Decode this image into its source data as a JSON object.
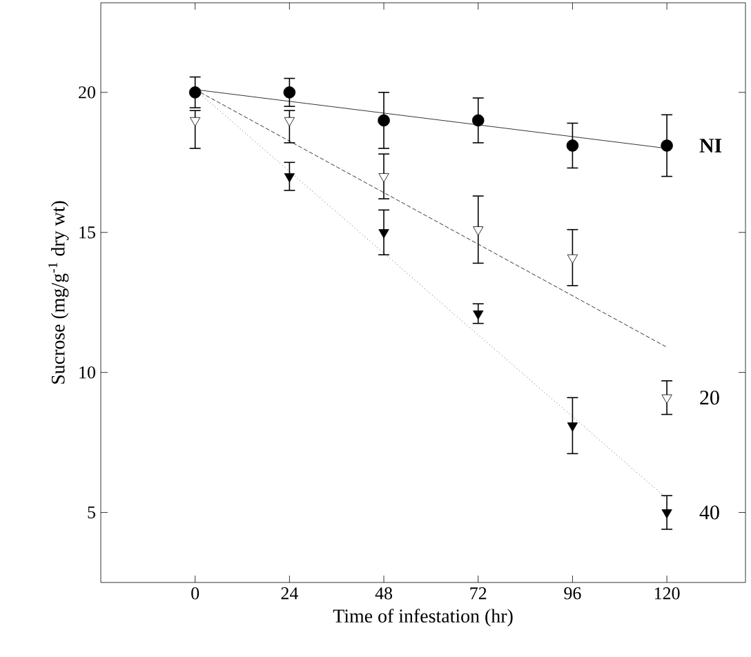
{
  "chart_data": {
    "type": "scatter",
    "xlabel": "Time of infestation (hr)",
    "ylabel": "Sucrose (mg/g$^{-1}$ dry wt)",
    "xlim": [
      -24,
      140
    ],
    "ylim": [
      2.5,
      23.2
    ],
    "xticks": [
      0,
      24,
      48,
      72,
      96,
      120
    ],
    "yticks": [
      5,
      10,
      15,
      20
    ],
    "series": [
      {
        "type": "line",
        "color": "#000000",
        "line_style": "solid",
        "marker": "none",
        "x": [
          0,
          120
        ],
        "values": [
          20.1,
          18.0
        ]
      },
      {
        "type": "line",
        "color": "#000000",
        "line_style": "dashed",
        "marker": "none",
        "x": [
          0,
          120
        ],
        "values": [
          20.1,
          10.9
        ]
      },
      {
        "type": "line",
        "color": "#000000",
        "line_style": "dotted",
        "marker": "none",
        "x": [
          0,
          120
        ],
        "values": [
          20.1,
          5.5
        ]
      },
      {
        "name": "NI",
        "color": "#000000",
        "marker": "circle",
        "x": [
          0,
          24,
          48,
          72,
          96,
          120
        ],
        "values": [
          20.0,
          20.0,
          19.0,
          19.0,
          18.1,
          18.1
        ],
        "errors": [
          0.55,
          0.5,
          1.0,
          0.8,
          0.8,
          1.1
        ]
      },
      {
        "name": "20",
        "color": "#ffffff",
        "marker": "triangle",
        "x": [
          0,
          24,
          48,
          72,
          96,
          120
        ],
        "values": [
          19.0,
          19.0,
          17.0,
          15.1,
          14.1,
          9.1
        ],
        "errors": [
          [
            18.0,
            19.35
          ],
          [
            18.2,
            19.35
          ],
          0.8,
          1.2,
          1.0,
          0.6
        ]
      },
      {
        "name": "40",
        "color": "#000000",
        "marker": "triangle",
        "x": [
          24,
          48,
          72,
          96,
          120
        ],
        "values": [
          17.0,
          15.0,
          12.1,
          8.1,
          5.0
        ],
        "errors": [
          0.5,
          0.8,
          0.35,
          1.0,
          0.6
        ]
      }
    ]
  }
}
